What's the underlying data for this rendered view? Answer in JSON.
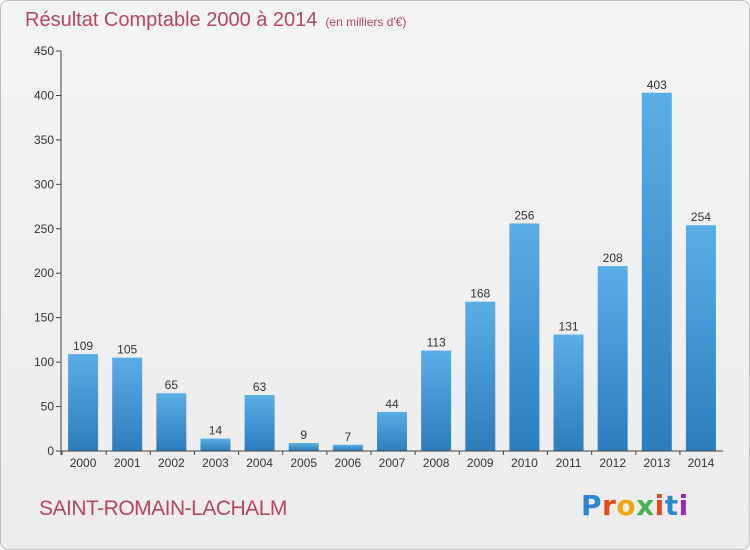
{
  "chart_data": {
    "type": "bar",
    "title": "Résultat Comptable 2000 à 2014",
    "unit": "(en milliers d'€)",
    "categories": [
      "2000",
      "2001",
      "2002",
      "2003",
      "2004",
      "2005",
      "2006",
      "2007",
      "2008",
      "2009",
      "2010",
      "2011",
      "2012",
      "2013",
      "2014"
    ],
    "values": [
      109,
      105,
      65,
      14,
      63,
      9,
      7,
      44,
      113,
      168,
      256,
      131,
      208,
      403,
      254
    ],
    "ylim": [
      0,
      450
    ],
    "yticks": [
      0,
      50,
      100,
      150,
      200,
      250,
      300,
      350,
      400,
      450
    ],
    "xlabel": "",
    "ylabel": "",
    "grid": false
  },
  "location": "SAINT-ROMAIN-LACHALM",
  "brand": {
    "letters": [
      "P",
      "r",
      "o",
      "x",
      "i",
      "t",
      "i"
    ],
    "colors": [
      "#2e86d1",
      "#e8471b",
      "#f0a500",
      "#4caf50",
      "#e8471b",
      "#2e86d1",
      "#9c27b0"
    ]
  },
  "colors": {
    "title": "#b8465e",
    "bar_top": "#5aaee6",
    "bar_bottom": "#2d7dbc",
    "axis": "#444444"
  }
}
